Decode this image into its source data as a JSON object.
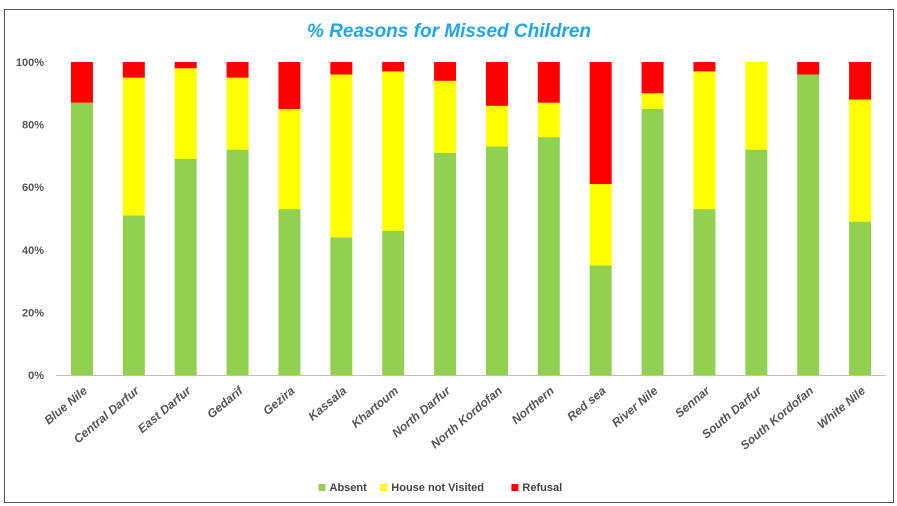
{
  "chart_data": {
    "type": "bar",
    "stacked": true,
    "normalized": true,
    "title": "% Reasons for Missed Children",
    "xlabel": "",
    "ylabel": "",
    "ylim": [
      0,
      100
    ],
    "yticks": [
      "0%",
      "20%",
      "40%",
      "60%",
      "80%",
      "100%"
    ],
    "categories": [
      "Blue Nile",
      "Central Darfur",
      "East Darfur",
      "Gedarif",
      "Gezira",
      "Kassala",
      "Khartoum",
      "North Darfur",
      "North Kordofan",
      "Northern",
      "Red sea",
      "River Nile",
      "Sennar",
      "South Darfur",
      "South Kordofan",
      "White Nile"
    ],
    "series": [
      {
        "name": "Absent",
        "color": "#92d050",
        "values": [
          87,
          51,
          69,
          72,
          53,
          44,
          46,
          71,
          73,
          76,
          35,
          85,
          53,
          72,
          96,
          49
        ]
      },
      {
        "name": "House not Visited",
        "color": "#ffff00",
        "values": [
          0,
          44,
          29,
          23,
          32,
          52,
          51,
          23,
          13,
          11,
          26,
          5,
          44,
          28,
          0,
          39
        ]
      },
      {
        "name": "Refusal",
        "color": "#ff0000",
        "values": [
          13,
          5,
          2,
          5,
          15,
          4,
          3,
          6,
          14,
          13,
          39,
          10,
          3,
          0,
          4,
          12
        ]
      }
    ],
    "legend": "bottom",
    "grid": false
  }
}
